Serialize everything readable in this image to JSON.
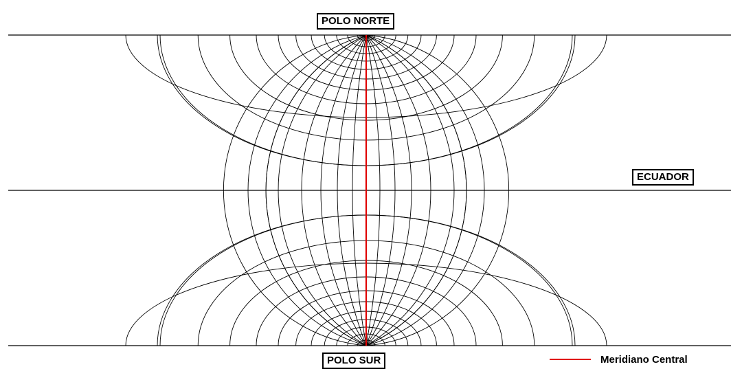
{
  "labels": {
    "north_pole": "POLO NORTE",
    "south_pole": "POLO SUR",
    "equator": "ECUADOR"
  },
  "legend": {
    "central_meridian_label": "Meridiano Central",
    "central_meridian_color": "#e00000"
  },
  "colors": {
    "grid_line": "#000000",
    "background": "#ffffff"
  }
}
